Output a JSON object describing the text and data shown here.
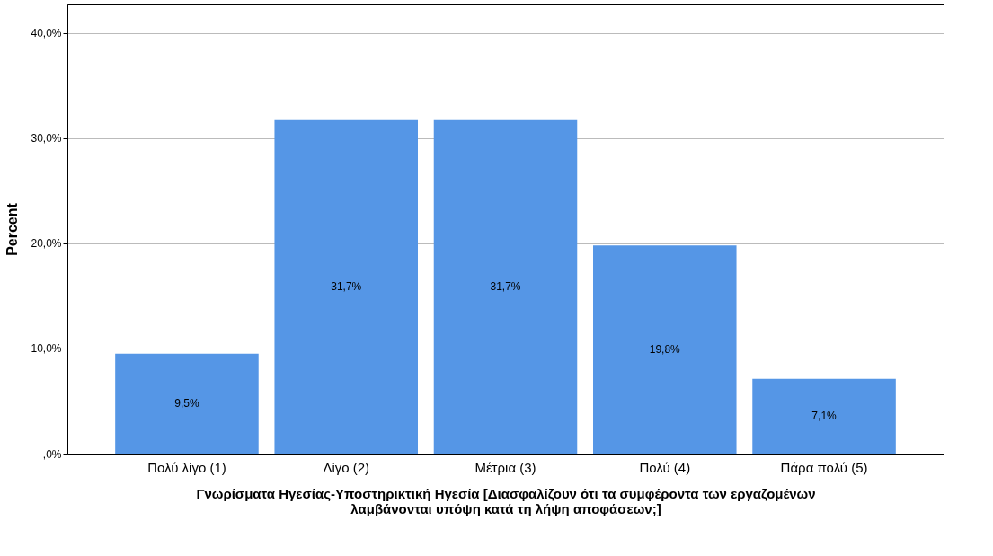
{
  "chart_data": {
    "type": "bar",
    "ylabel": "Percent",
    "xlabel": "Γνωρίσματα Ηγεσίας-Υποστηρικτική Ηγεσία [Διασφαλίζουν ότι τα συμφέροντα των εργαζομένων\nλαμβάνονται υπόψη κατά τη λήψη αποφάσεων;]",
    "categories": [
      "Πολύ λίγο (1)",
      "Λίγο (2)",
      "Μέτρια (3)",
      "Πολύ (4)",
      "Πάρα πολύ (5)"
    ],
    "values": [
      9.5,
      31.7,
      31.7,
      19.8,
      7.1
    ],
    "value_labels": [
      "9,5%",
      "31,7%",
      "31,7%",
      "19,8%",
      "7,1%"
    ],
    "color": "#5596e6",
    "ylim": [
      0,
      42.7
    ],
    "yticks": [
      {
        "value": 0,
        "label": ",0%"
      },
      {
        "value": 10,
        "label": "10,0%"
      },
      {
        "value": 20,
        "label": "20,0%"
      },
      {
        "value": 30,
        "label": "30,0%"
      },
      {
        "value": 40,
        "label": "40,0%"
      }
    ],
    "grid": "y"
  }
}
